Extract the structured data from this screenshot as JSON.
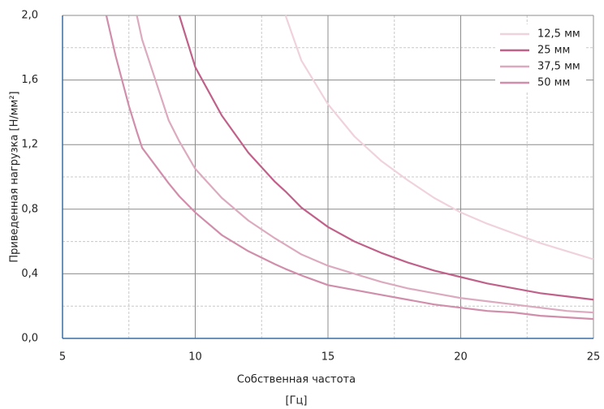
{
  "chart_data": {
    "type": "line",
    "x_label": "Собственная частота",
    "x_unit": "[Гц]",
    "y_label": "Приведенная нагрузка [Н/мм²]",
    "x": [
      6.65,
      7,
      7.5,
      7.8,
      8,
      9,
      9.4,
      10,
      11,
      12,
      13,
      13.4,
      14,
      15,
      16,
      17,
      18,
      19,
      20,
      21,
      22,
      23,
      24,
      25
    ],
    "series": [
      {
        "name": "12,5 мм",
        "color": "#f0d2dc",
        "values": [
          null,
          null,
          null,
          null,
          null,
          null,
          null,
          null,
          null,
          null,
          null,
          2.0,
          1.72,
          1.45,
          1.25,
          1.1,
          0.98,
          0.87,
          0.78,
          0.71,
          0.65,
          0.59,
          0.54,
          0.49
        ]
      },
      {
        "name": "25 мм",
        "color": "#c0618a",
        "values": [
          null,
          null,
          null,
          null,
          null,
          null,
          2.0,
          1.68,
          1.38,
          1.15,
          0.97,
          0.91,
          0.81,
          0.69,
          0.6,
          0.53,
          0.47,
          0.42,
          0.38,
          0.34,
          0.31,
          0.28,
          0.26,
          0.24
        ]
      },
      {
        "name": "37,5 мм",
        "color": "#dcaabf",
        "values": [
          null,
          null,
          null,
          2.0,
          1.85,
          1.35,
          1.22,
          1.05,
          0.87,
          0.73,
          0.62,
          0.58,
          0.52,
          0.45,
          0.4,
          0.35,
          0.31,
          0.28,
          0.25,
          0.23,
          0.21,
          0.19,
          0.17,
          0.16
        ]
      },
      {
        "name": "50 мм",
        "color": "#d08eab",
        "values": [
          2.0,
          1.75,
          1.44,
          1.28,
          1.18,
          0.96,
          0.88,
          0.78,
          0.64,
          0.54,
          0.46,
          0.43,
          0.39,
          0.33,
          0.3,
          0.27,
          0.24,
          0.21,
          0.19,
          0.17,
          0.16,
          0.14,
          0.13,
          0.12
        ]
      }
    ],
    "xlim": [
      5,
      25
    ],
    "ylim": [
      0,
      2.0
    ],
    "xticks": [
      5,
      10,
      15,
      20,
      25
    ],
    "yticks": [
      {
        "value": 0,
        "label": "0,0"
      },
      {
        "value": 0.4,
        "label": "0,4"
      },
      {
        "value": 0.8,
        "label": "0,8"
      },
      {
        "value": 1.2,
        "label": "1,2"
      },
      {
        "value": 1.6,
        "label": "1,6"
      },
      {
        "value": 2.0,
        "label": "2,0"
      }
    ],
    "xminorticks": [
      7.5,
      12.5,
      17.5,
      22.5
    ],
    "yminorticks": [
      0.2,
      0.6,
      1.0,
      1.4,
      1.8
    ],
    "grid": true,
    "legend": "top-right"
  }
}
